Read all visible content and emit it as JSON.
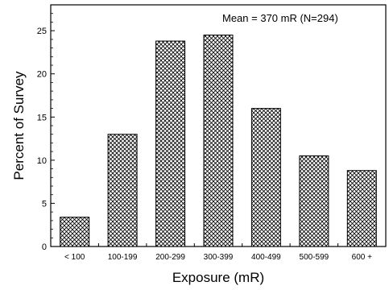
{
  "chart_data": {
    "type": "bar",
    "title": "",
    "xlabel": "Exposure (mR)",
    "ylabel": "Percent of Survey",
    "categories": [
      "< 100",
      "100-199",
      "200-299",
      "300-399",
      "400-499",
      "500-599",
      "600 +"
    ],
    "values": [
      3.4,
      13.0,
      23.8,
      24.5,
      16.0,
      10.5,
      8.8
    ],
    "ylim": [
      0,
      28
    ],
    "yticks": [
      0,
      5,
      10,
      15,
      20,
      25
    ],
    "grid": false,
    "bar_fill": "crosshatch",
    "annotation": "Mean = 370 mR (N=294)"
  }
}
